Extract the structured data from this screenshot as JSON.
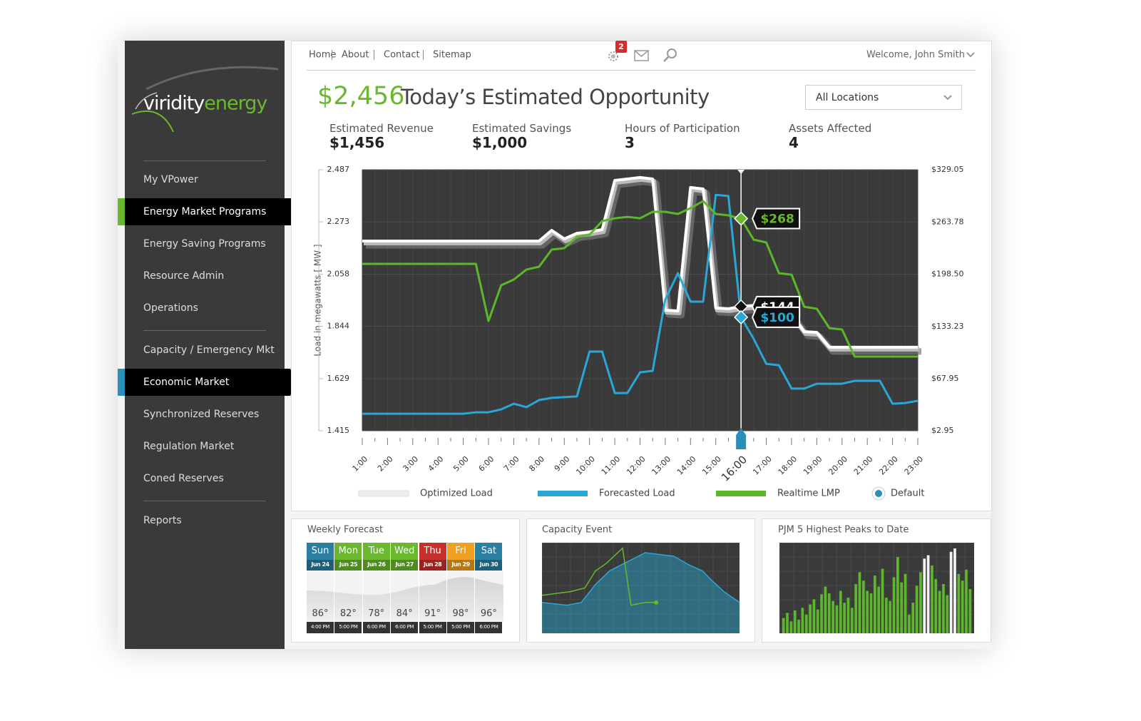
{
  "logo": {
    "first": "viridity",
    "second": "energy"
  },
  "nav": {
    "links": [
      "Home",
      "About",
      "Contact",
      "Sitemap"
    ],
    "badge": "2",
    "welcome": "Welcome, John Smith"
  },
  "sidebar": {
    "groups": [
      [
        {
          "label": "My VPower"
        },
        {
          "label": "Energy Market Programs",
          "active": "#6ab82e"
        },
        {
          "label": "Energy Saving Programs"
        },
        {
          "label": "Resource Admin"
        },
        {
          "label": "Operations"
        }
      ],
      [
        {
          "label": "Capacity / Emergency Mkt"
        },
        {
          "label": "Economic Market",
          "active": "#2a8fb8"
        },
        {
          "label": "Synchronized Reserves"
        },
        {
          "label": "Regulation Market"
        },
        {
          "label": "Coned Reserves"
        }
      ],
      [
        {
          "label": "Reports"
        }
      ]
    ]
  },
  "header": {
    "amount": "$2,456",
    "title": "Today’s Estimated Opportunity",
    "location": "All Locations"
  },
  "stats": [
    {
      "label": "Estimated Revenue",
      "value": "$1,456"
    },
    {
      "label": "Estimated Savings",
      "value": "$1,000"
    },
    {
      "label": "Hours of Participation",
      "value": "3"
    },
    {
      "label": "Assets Affected",
      "value": "4"
    }
  ],
  "chart_data": {
    "type": "line",
    "y_label": "Load in megawatts [ MW ]",
    "categories": [
      "1:00",
      null,
      "2:00",
      null,
      "3:00",
      null,
      "4:00",
      null,
      "5:00",
      null,
      "6:00",
      null,
      "7:00",
      null,
      "8:00",
      null,
      "9:00",
      null,
      "10:00",
      null,
      "11:00",
      null,
      "12:00",
      null,
      "13:00",
      null,
      "14:00",
      null,
      "15:00",
      null,
      "16:00",
      null,
      "17:00",
      null,
      "18:00",
      null,
      "19:00",
      null,
      "20:00",
      null,
      "21:00",
      null,
      "22:00",
      null,
      "23:00"
    ],
    "selected": "16:00",
    "ylim": [
      1.415,
      2.487
    ],
    "yticks": [
      1.415,
      1.629,
      1.844,
      2.058,
      2.273,
      2.487
    ],
    "y2lim": [
      2.95,
      329.05
    ],
    "y2ticks": [
      {
        "value": 2.95,
        "label": "$2.95"
      },
      {
        "value": 67.95,
        "label": "$67.95"
      },
      {
        "value": 133.23,
        "label": "$133.23"
      },
      {
        "value": 198.5,
        "label": "$198.50"
      },
      {
        "value": 263.78,
        "label": "$263.78"
      },
      {
        "value": 329.05,
        "label": "$329.05"
      }
    ],
    "grid": true,
    "series": [
      {
        "name": "Optimized Load",
        "color": "#ffffff",
        "values": [
          2.194,
          2.194,
          2.194,
          2.194,
          2.194,
          2.194,
          2.194,
          2.194,
          2.194,
          2.194,
          2.194,
          2.194,
          2.194,
          2.194,
          2.194,
          2.238,
          2.203,
          2.226,
          2.232,
          2.241,
          2.443,
          2.449,
          2.455,
          2.449,
          1.91,
          1.907,
          2.414,
          2.408,
          1.919,
          1.916,
          1.925,
          1.93,
          1.925,
          1.895,
          1.892,
          1.822,
          1.819,
          1.758,
          1.758,
          1.758,
          1.758,
          1.758,
          1.758,
          1.758,
          1.758
        ]
      },
      {
        "name": "Forecasted Load",
        "color": "#29a8d8",
        "values": [
          1.485,
          1.485,
          1.485,
          1.485,
          1.485,
          1.485,
          1.485,
          1.485,
          1.485,
          1.491,
          1.491,
          1.503,
          1.526,
          1.512,
          1.541,
          1.55,
          1.553,
          1.556,
          1.74,
          1.74,
          1.57,
          1.57,
          1.655,
          1.661,
          1.954,
          2.062,
          1.945,
          1.945,
          2.384,
          2.379,
          1.881,
          1.793,
          1.69,
          1.684,
          1.588,
          1.588,
          1.608,
          1.608,
          1.608,
          1.62,
          1.62,
          1.62,
          1.526,
          1.529,
          1.538
        ]
      },
      {
        "name": "Realtime LMP",
        "color": "#5cb82a",
        "axis": "y2",
        "values": [
          211.4,
          211.4,
          211.4,
          211.4,
          211.4,
          211.4,
          211.4,
          211.4,
          211.4,
          211.4,
          140.1,
          184.7,
          191.8,
          204.3,
          207.9,
          229.3,
          231.0,
          245.3,
          247.9,
          264.9,
          268.4,
          270.2,
          268.4,
          276.5,
          276.5,
          273.8,
          281.0,
          289.9,
          273.8,
          272.0,
          268.0,
          241.7,
          238.2,
          199.8,
          198.0,
          157.9,
          155.3,
          131.2,
          129.5,
          95.6,
          95.6,
          95.6,
          95.6,
          95.6,
          95.6
        ]
      }
    ],
    "annotations": [
      {
        "label": "$144",
        "color": "#ffffff",
        "marker_color": "#111111"
      },
      {
        "label": "$100",
        "color": "#29a8d8",
        "marker_color": "#29a8d8"
      },
      {
        "label": "$268",
        "color": "#6ab82e",
        "marker_color": "#6ab82e"
      }
    ],
    "toggle": "Default"
  },
  "weekly_forecast": {
    "title": "Weekly Forecast",
    "days": [
      {
        "day": "Sun",
        "date": "Jun 24",
        "color": "#2a7fa3",
        "temp": "86°",
        "time": "4:00 PM"
      },
      {
        "day": "Mon",
        "date": "Jun 25",
        "color": "#6ab82e",
        "temp": "82°",
        "time": "5:00 PM"
      },
      {
        "day": "Tue",
        "date": "Jun 26",
        "color": "#6ab82e",
        "temp": "78°",
        "time": "6:00 PM"
      },
      {
        "day": "Wed",
        "date": "Jun 27",
        "color": "#6ab82e",
        "temp": "84°",
        "time": "6:00 PM"
      },
      {
        "day": "Thu",
        "date": "Jun 28",
        "color": "#c8302b",
        "temp": "91°",
        "time": "5:00 PM"
      },
      {
        "day": "Fri",
        "date": "Jun 29",
        "color": "#f0a020",
        "temp": "98°",
        "time": "5:00 PM"
      },
      {
        "day": "Sat",
        "date": "Jun 30",
        "color": "#2a7fa3",
        "temp": "96°",
        "time": "6:00 PM"
      }
    ]
  },
  "capacity_event": {
    "title": "Capacity Event",
    "type": "line",
    "xlim": [
      0,
      100
    ],
    "ylim": [
      0,
      100
    ],
    "series": [
      {
        "color": "#29a8d8",
        "area": true,
        "x": [
          0,
          12.6,
          19.9,
          27.1,
          34.3,
          41.5,
          52.3,
          66.8,
          74,
          81.2,
          86.6,
          92.1,
          100
        ],
        "values": [
          34,
          31,
          34,
          54,
          69,
          77,
          89,
          85,
          76,
          69,
          57,
          46,
          34
        ]
      },
      {
        "color": "#6ab82e",
        "x": [
          0,
          14.4,
          21.7,
          27.1,
          32.5,
          40.8,
          45.1,
          52.3,
          57.8
        ],
        "values": [
          42,
          46,
          50,
          69,
          77,
          94,
          31,
          34,
          34
        ]
      }
    ]
  },
  "peaks": {
    "title": "PJM 5 Highest Peaks to Date",
    "type": "bar",
    "ylim": [
      0,
      100
    ],
    "series": [
      {
        "color": "#5cb82a",
        "values": [
          18,
          24,
          14,
          27,
          16,
          30,
          22,
          34,
          40,
          28,
          46,
          55,
          47,
          38,
          33,
          50,
          36,
          42,
          30,
          58,
          72,
          62,
          50,
          47,
          68,
          55,
          76,
          42,
          38,
          66,
          90,
          60,
          70,
          22,
          36,
          56,
          72,
          null,
          null,
          80,
          64,
          50,
          58,
          45,
          null,
          null,
          70,
          62,
          75,
          52
        ]
      },
      {
        "color": "#f2f2f2",
        "values": [
          null,
          null,
          null,
          null,
          null,
          null,
          null,
          null,
          null,
          null,
          null,
          null,
          null,
          null,
          null,
          null,
          null,
          null,
          null,
          null,
          null,
          null,
          null,
          null,
          null,
          null,
          null,
          null,
          null,
          null,
          null,
          null,
          null,
          null,
          null,
          null,
          null,
          88,
          92,
          null,
          null,
          null,
          null,
          null,
          96,
          100,
          null,
          null,
          null,
          null
        ]
      }
    ]
  }
}
